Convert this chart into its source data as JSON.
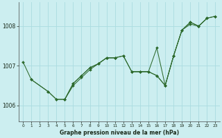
{
  "title": "Graphe pression niveau de la mer (hPa)",
  "bg_color": "#cceef0",
  "grid_color": "#aadce0",
  "line_color": "#2d6a2d",
  "xlim": [
    -0.5,
    23.5
  ],
  "ylim": [
    1005.6,
    1008.6
  ],
  "yticks": [
    1006,
    1007,
    1008
  ],
  "xticks": [
    0,
    1,
    2,
    3,
    4,
    5,
    6,
    7,
    8,
    9,
    10,
    11,
    12,
    13,
    14,
    15,
    16,
    17,
    18,
    19,
    20,
    21,
    22,
    23
  ],
  "series": [
    {
      "x": [
        0,
        1,
        3,
        4,
        5,
        6,
        7,
        8,
        9,
        10,
        11
      ],
      "y": [
        1007.1,
        1006.65,
        1006.35,
        1006.15,
        1006.15,
        1006.5,
        1006.7,
        1006.9,
        1007.05,
        1007.2,
        1007.2
      ]
    },
    {
      "x": [
        13,
        14,
        15,
        16,
        17,
        18,
        19,
        20,
        21,
        22
      ],
      "y": [
        1006.85,
        1006.85,
        1006.85,
        1006.75,
        1006.5,
        1007.25,
        1007.9,
        1008.1,
        1008.0,
        1008.2
      ]
    },
    {
      "x": [
        1,
        3,
        4,
        5,
        6,
        7,
        8,
        9,
        10,
        11,
        12,
        13,
        14,
        15,
        16,
        17,
        18,
        19,
        20,
        21,
        22,
        23
      ],
      "y": [
        1006.65,
        1006.35,
        1006.15,
        1006.15,
        1006.55,
        1006.75,
        1006.95,
        1007.05,
        1007.2,
        1007.2,
        1007.25,
        1006.85,
        1006.85,
        1006.85,
        1007.45,
        1006.5,
        1007.25,
        1007.9,
        1008.1,
        1008.0,
        1008.2,
        1008.25
      ]
    },
    {
      "x": [
        5,
        6,
        7,
        8,
        9,
        10,
        11,
        12,
        13,
        14,
        15,
        16,
        17,
        18,
        19,
        20,
        21,
        22,
        23
      ],
      "y": [
        1006.15,
        1006.55,
        1006.75,
        1006.95,
        1007.05,
        1007.2,
        1007.2,
        1007.25,
        1006.85,
        1006.85,
        1006.85,
        1006.75,
        1006.5,
        1007.25,
        1007.9,
        1008.05,
        1008.0,
        1008.2,
        1008.25
      ]
    }
  ]
}
